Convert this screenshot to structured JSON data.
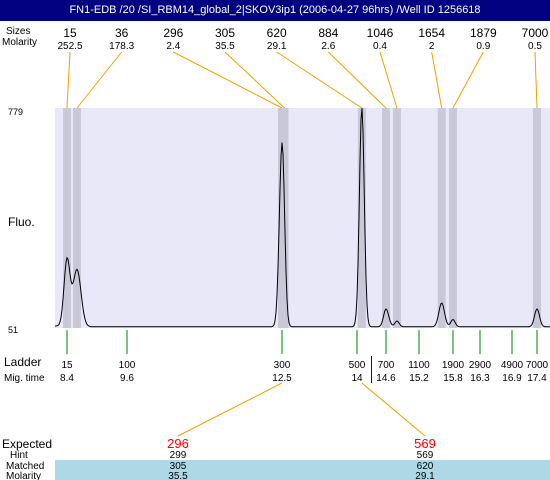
{
  "title": "FN1-EDB /20 /SI_RBM14_global_2|SKOV3ip1 (2006-04-27 96hrs) /Well ID 1256618",
  "labels": {
    "sizes": "Sizes",
    "molarity": "Molarity",
    "fluo": "Fluo.",
    "ladder": "Ladder",
    "mig_time": "Mig. time",
    "expected": "Expected",
    "hint": "Hint",
    "matched": "Matched",
    "molarity_bottom": "Molarity"
  },
  "colors": {
    "title_bg": "#000080",
    "plot_bg": "#e8e8f8",
    "band": "#c8c8d8",
    "connector": "#f0a000",
    "ladder_tick": "#008000",
    "expected_text": "#ff0000",
    "table_bg": "#add8e6",
    "marker": "#0000ff"
  },
  "chart_data": {
    "type": "line",
    "y_axis": {
      "min_label": "51",
      "max_label": "779",
      "ylim": [
        51,
        779
      ]
    },
    "peaks": [
      {
        "size": "15",
        "molarity": "252.5",
        "mig_time": 8.4,
        "height": 270
      },
      {
        "size": "36",
        "molarity": "178.3",
        "mig_time": 8.6,
        "height": 240
      },
      {
        "size": "296",
        "molarity": "2.4",
        "mig_time": 12.5,
        "height": 650
      },
      {
        "size": "305",
        "molarity": "35.5",
        "mig_time": 12.55,
        "height": 75
      },
      {
        "size": "620",
        "molarity": "29.1",
        "mig_time": 14.1,
        "height": 779
      },
      {
        "size": "884",
        "molarity": "2.6",
        "mig_time": 14.6,
        "height": 110
      },
      {
        "size": "1046",
        "molarity": "0.4",
        "mig_time": 14.8,
        "height": 70
      },
      {
        "size": "1654",
        "molarity": "2",
        "mig_time": 15.6,
        "height": 130
      },
      {
        "size": "1879",
        "molarity": "0.9",
        "mig_time": 15.8,
        "height": 75
      },
      {
        "size": "7000",
        "molarity": "0.5",
        "mig_time": 17.4,
        "height": 110
      }
    ],
    "ladder": [
      {
        "size": "15",
        "mig_time": "8.4"
      },
      {
        "size": "100",
        "mig_time": "9.6"
      },
      {
        "size": "300",
        "mig_time": "12.5"
      },
      {
        "size": "500",
        "mig_time": "14"
      },
      {
        "size": "700",
        "mig_time": "14.6"
      },
      {
        "size": "1100",
        "mig_time": "15.2"
      },
      {
        "size": "1900",
        "mig_time": "15.8"
      },
      {
        "size": "2900",
        "mig_time": "16.3"
      },
      {
        "size": "4900",
        "mig_time": "16.9"
      },
      {
        "size": "7000",
        "mig_time": "17.4"
      }
    ],
    "expected": [
      {
        "expected": "296",
        "hint": "299",
        "matched": "305",
        "molarity": "35.5",
        "mig_time": 12.5
      },
      {
        "expected": "569",
        "hint": "569",
        "matched": "620",
        "molarity": "29.1",
        "mig_time": 14.1
      }
    ],
    "marker_mig_time": 14.3,
    "baseline": 51
  }
}
